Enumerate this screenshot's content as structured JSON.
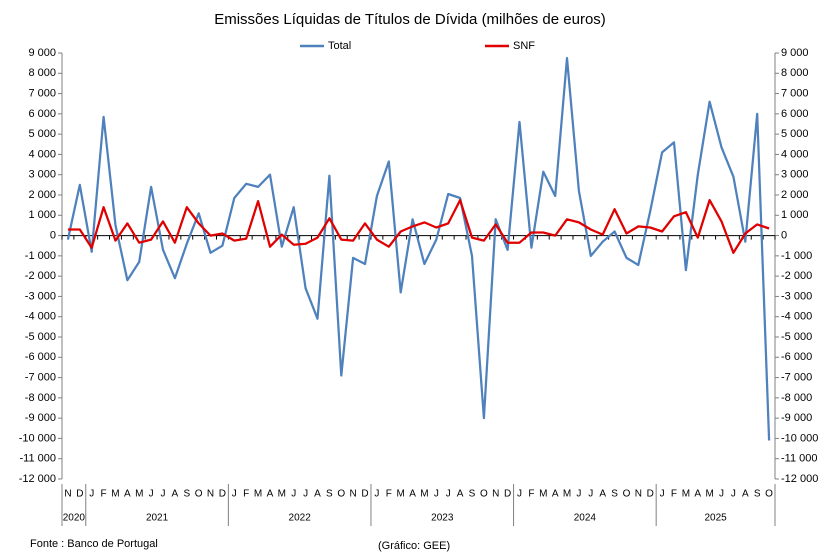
{
  "chart_data": {
    "type": "line",
    "title": "Emissões Líquidas de Títulos de Dívida (milhões de euros)",
    "categories": [
      "N",
      "D",
      "J",
      "F",
      "M",
      "A",
      "M",
      "J",
      "J",
      "A",
      "S",
      "O",
      "N",
      "D",
      "J",
      "F",
      "M",
      "A",
      "M",
      "J",
      "J",
      "A",
      "S",
      "O",
      "N",
      "D",
      "J",
      "F",
      "M",
      "A",
      "M",
      "J",
      "J",
      "A",
      "S",
      "O",
      "N",
      "D",
      "J",
      "F",
      "M",
      "A",
      "M",
      "J",
      "J",
      "A",
      "S",
      "O",
      "N",
      "D",
      "J",
      "F",
      "M",
      "A",
      "M",
      "J",
      "J",
      "A",
      "S",
      "O"
    ],
    "x_groups": [
      {
        "label": "2020",
        "span": 2
      },
      {
        "label": "2021",
        "span": 12
      },
      {
        "label": "2022",
        "span": 12
      },
      {
        "label": "2023",
        "span": 12
      },
      {
        "label": "2024",
        "span": 12
      },
      {
        "label": "2025",
        "span": 10
      }
    ],
    "series": [
      {
        "name": "Total",
        "color": "#4f81bd",
        "values": [
          -200,
          2500,
          -800,
          5850,
          500,
          -2200,
          -1300,
          2400,
          -700,
          -2100,
          -400,
          1100,
          -850,
          -500,
          1850,
          2550,
          2400,
          3000,
          -550,
          1400,
          -2600,
          -4100,
          2950,
          -6900,
          -1100,
          -1400,
          1950,
          3650,
          -2800,
          800,
          -1400,
          -200,
          2050,
          1850,
          -1000,
          -9000,
          800,
          -700,
          5600,
          -600,
          3150,
          1950,
          8750,
          2200,
          -1000,
          -300,
          200,
          -1100,
          -1450,
          1200,
          4100,
          4600,
          -1700,
          3000,
          6600,
          4350,
          2900,
          -300,
          6000,
          -10100
        ]
      },
      {
        "name": "SNF",
        "color": "#e00000",
        "values": [
          300,
          300,
          -600,
          1400,
          -250,
          600,
          -350,
          -200,
          700,
          -350,
          1400,
          600,
          0,
          100,
          -250,
          -150,
          1700,
          -550,
          50,
          -450,
          -400,
          -100,
          850,
          -200,
          -250,
          600,
          -200,
          -550,
          200,
          450,
          650,
          400,
          600,
          1750,
          -100,
          -250,
          550,
          -350,
          -350,
          150,
          150,
          0,
          800,
          650,
          300,
          50,
          1300,
          100,
          450,
          400,
          200,
          950,
          1150,
          -100,
          1750,
          700,
          -850,
          100,
          550,
          350
        ]
      }
    ],
    "ylim": [
      -12000,
      9000
    ],
    "yticks": [
      {
        "value": 9000,
        "label": "9 000"
      },
      {
        "value": 8000,
        "label": "8 000"
      },
      {
        "value": 7000,
        "label": "7 000"
      },
      {
        "value": 6000,
        "label": "6 000"
      },
      {
        "value": 5000,
        "label": "5 000"
      },
      {
        "value": 4000,
        "label": "4 000"
      },
      {
        "value": 3000,
        "label": "3 000"
      },
      {
        "value": 2000,
        "label": "2 000"
      },
      {
        "value": 1000,
        "label": "1 000"
      },
      0,
      {
        "value": -1000,
        "label": "-1 000"
      },
      {
        "value": -2000,
        "label": "-2 000"
      },
      {
        "value": -3000,
        "label": "-3 000"
      },
      {
        "value": -4000,
        "label": "-4 000"
      },
      {
        "value": -5000,
        "label": "-5 000"
      },
      {
        "value": -6000,
        "label": "-6 000"
      },
      {
        "value": -7000,
        "label": "-7 000"
      },
      {
        "value": -8000,
        "label": "-8 000"
      },
      {
        "value": -9000,
        "label": "-9 000"
      },
      {
        "value": -10000,
        "label": "-10 000"
      },
      {
        "value": -11000,
        "label": "-11 000"
      },
      {
        "value": -12000,
        "label": "-12 000"
      }
    ],
    "source": "Fonte : Banco de Portugal",
    "credit": "(Gráfico: GEE)"
  }
}
